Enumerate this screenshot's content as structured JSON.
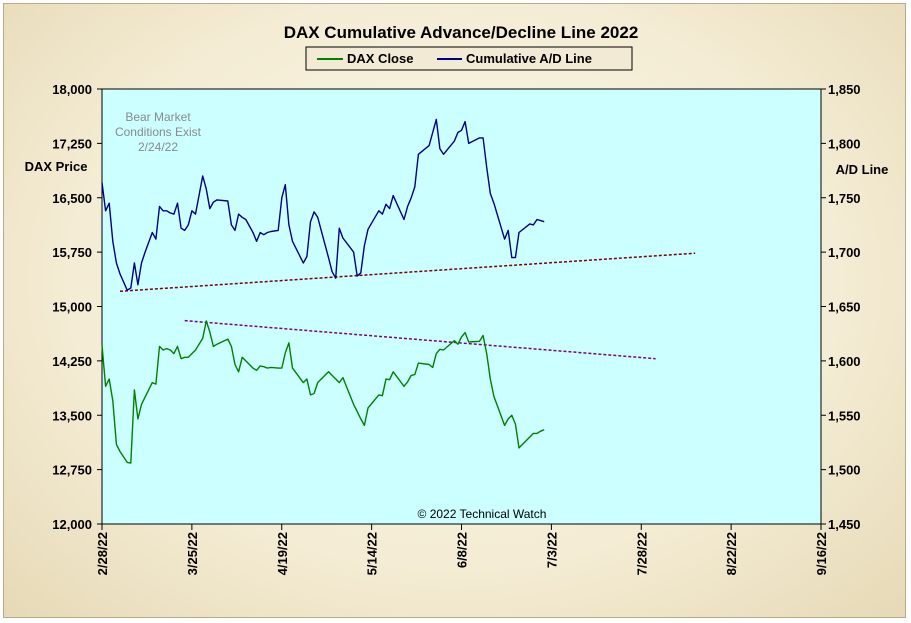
{
  "chart_data": {
    "type": "line",
    "title": "DAX Cumulative Advance/Decline Line 2022",
    "y_left_label": "DAX Price",
    "y_right_label": "A/D Line",
    "ylim_left": [
      12000,
      18000
    ],
    "ylim_right": [
      1450,
      1850
    ],
    "y_left_ticks": [
      "12,000",
      "12,750",
      "13,500",
      "14,250",
      "15,000",
      "15,750",
      "16,500",
      "17,250",
      "18,000"
    ],
    "y_right_ticks": [
      "1,450",
      "1,500",
      "1,550",
      "1,600",
      "1,650",
      "1,700",
      "1,750",
      "1,800",
      "1,850"
    ],
    "x_ticks": [
      "2/28/22",
      "3/25/22",
      "4/19/22",
      "5/14/22",
      "6/8/22",
      "7/3/22",
      "7/28/22",
      "8/22/22",
      "9/16/22"
    ],
    "x_range_days": [
      0,
      200
    ],
    "grid": false,
    "legend": [
      {
        "name": "DAX Close",
        "color": "#008000"
      },
      {
        "name": "Cumulative A/D Line",
        "color": "#000080"
      }
    ],
    "series": [
      {
        "name": "DAX Close",
        "axis": "left",
        "color": "#008000",
        "x": [
          0,
          1,
          2,
          3,
          4,
          5,
          7,
          8,
          9,
          10,
          11,
          12,
          14,
          15,
          16,
          17,
          18,
          19,
          20,
          21,
          22,
          23,
          24,
          25,
          26,
          28,
          29,
          30,
          31,
          32,
          35,
          36,
          37,
          38,
          39,
          40,
          42,
          43,
          44,
          45,
          46,
          47,
          49,
          50,
          51,
          52,
          53,
          56,
          57,
          58,
          59,
          60,
          63,
          64,
          65,
          66,
          67,
          70,
          71,
          72,
          73,
          74,
          77,
          78,
          79,
          80,
          81,
          84,
          85,
          86,
          87,
          88,
          91,
          92,
          93,
          94,
          95,
          98,
          99,
          100,
          101,
          102,
          105,
          106,
          107,
          108,
          109,
          112,
          113,
          114,
          115,
          116,
          119,
          120,
          121,
          122,
          123
        ],
        "values": [
          14465,
          13900,
          14000,
          13700,
          13100,
          13000,
          12850,
          12840,
          13850,
          13450,
          13650,
          13750,
          13950,
          13930,
          14450,
          14400,
          14420,
          14400,
          14350,
          14450,
          14280,
          14300,
          14300,
          14350,
          14400,
          14560,
          14800,
          14650,
          14450,
          14480,
          14550,
          14450,
          14200,
          14100,
          14300,
          14250,
          14150,
          14120,
          14180,
          14170,
          14150,
          14160,
          14150,
          14150,
          14360,
          14500,
          14150,
          13950,
          14000,
          13780,
          13800,
          13950,
          14100,
          14050,
          14000,
          13950,
          14020,
          13650,
          13550,
          13450,
          13360,
          13600,
          13780,
          13770,
          14000,
          13990,
          14100,
          13900,
          13960,
          14050,
          14060,
          14220,
          14200,
          14160,
          14350,
          14410,
          14400,
          14530,
          14480,
          14580,
          14640,
          14510,
          14520,
          14600,
          14350,
          14000,
          13760,
          13360,
          13450,
          13500,
          13380,
          13050,
          13200,
          13250,
          13250,
          13280,
          13300
        ]
      },
      {
        "name": "Cumulative A/D Line",
        "axis": "right",
        "color": "#000080",
        "x": [
          0,
          1,
          2,
          3,
          4,
          5,
          7,
          8,
          9,
          10,
          11,
          12,
          14,
          15,
          16,
          17,
          18,
          19,
          20,
          21,
          22,
          23,
          24,
          25,
          26,
          28,
          29,
          30,
          31,
          32,
          35,
          36,
          37,
          38,
          39,
          40,
          42,
          43,
          44,
          45,
          46,
          47,
          49,
          50,
          51,
          52,
          53,
          56,
          57,
          58,
          59,
          60,
          63,
          64,
          65,
          66,
          67,
          70,
          71,
          72,
          73,
          74,
          77,
          78,
          79,
          80,
          81,
          84,
          85,
          86,
          87,
          88,
          91,
          92,
          93,
          94,
          95,
          98,
          99,
          100,
          101,
          102,
          105,
          106,
          107,
          108,
          109,
          112,
          113,
          114,
          115,
          116,
          119,
          120,
          121,
          122,
          123
        ],
        "values": [
          1764,
          1738,
          1745,
          1710,
          1690,
          1680,
          1665,
          1667,
          1690,
          1670,
          1690,
          1700,
          1718,
          1712,
          1742,
          1738,
          1738,
          1736,
          1735,
          1745,
          1722,
          1720,
          1725,
          1738,
          1735,
          1770,
          1758,
          1740,
          1746,
          1748,
          1747,
          1725,
          1720,
          1735,
          1732,
          1730,
          1718,
          1710,
          1718,
          1716,
          1718,
          1719,
          1720,
          1750,
          1762,
          1725,
          1710,
          1690,
          1696,
          1728,
          1737,
          1732,
          1695,
          1682,
          1676,
          1722,
          1713,
          1700,
          1678,
          1681,
          1706,
          1721,
          1738,
          1735,
          1744,
          1740,
          1752,
          1730,
          1742,
          1750,
          1760,
          1790,
          1798,
          1810,
          1822,
          1795,
          1790,
          1802,
          1810,
          1812,
          1820,
          1800,
          1805,
          1805,
          1778,
          1754,
          1745,
          1712,
          1720,
          1695,
          1695,
          1718,
          1726,
          1725,
          1730,
          1729,
          1728
        ]
      }
    ],
    "trendlines": [
      {
        "axis": "right",
        "color": "#800000",
        "x": [
          5,
          165
        ],
        "values": [
          1664,
          1699
        ]
      },
      {
        "axis": "right",
        "color": "#800080",
        "x": [
          23,
          154
        ],
        "values": [
          1637,
          1602
        ]
      }
    ],
    "annotations": [
      "Bear Market",
      "Conditions Exist",
      "2/24/22",
      "© 2022 Technical Watch"
    ]
  }
}
